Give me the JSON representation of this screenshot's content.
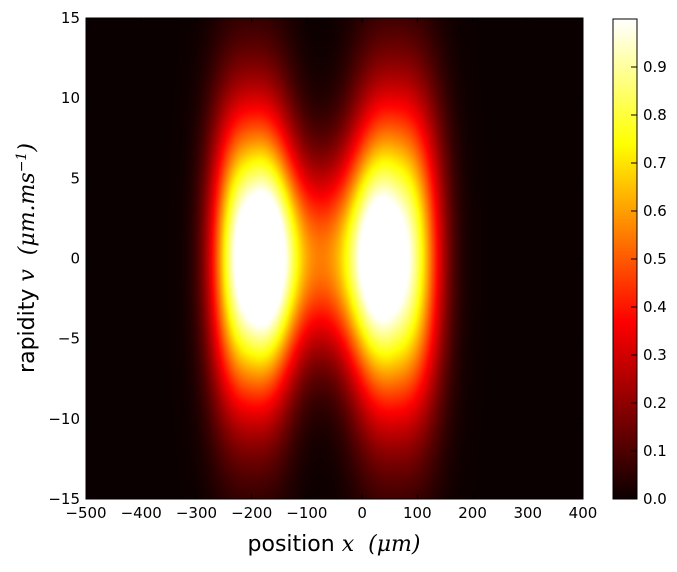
{
  "chart_data": {
    "type": "heatmap",
    "title": "",
    "xlabel": {
      "prefix": "position ",
      "var": "x",
      "unit": "(μm)"
    },
    "ylabel": {
      "prefix": "rapidity ",
      "var": "v",
      "unit": "(μm.ms",
      "exp": "−1",
      "close": ")"
    },
    "xlim": [
      -500,
      400
    ],
    "ylim": [
      -15,
      15
    ],
    "xticks": [
      -500,
      -400,
      -300,
      -200,
      -100,
      0,
      100,
      200,
      300,
      400
    ],
    "xtick_labels": [
      "−500",
      "−400",
      "−300",
      "−200",
      "−100",
      "0",
      "100",
      "200",
      "300",
      "400"
    ],
    "yticks": [
      -15,
      -10,
      -5,
      0,
      5,
      10,
      15
    ],
    "ytick_labels": [
      "−15",
      "−10",
      "−5",
      "0",
      "5",
      "10",
      "15"
    ],
    "colorbar": {
      "range": [
        0.0,
        1.0
      ],
      "ticks": [
        0.0,
        0.1,
        0.2,
        0.3,
        0.4,
        0.5,
        0.6,
        0.7,
        0.8,
        0.9
      ],
      "tick_labels": [
        "0.0",
        "0.1",
        "0.2",
        "0.3",
        "0.4",
        "0.5",
        "0.6",
        "0.7",
        "0.8",
        "0.9"
      ],
      "colormap": "hot"
    },
    "colormap_colors": [
      "#0b0000",
      "#ff0000",
      "#ffff00",
      "#ffffff"
    ],
    "distribution": {
      "description_of_shape": "two bright lobes joined, symmetric in v",
      "lobes": [
        {
          "x_center": -200,
          "v_center": 0,
          "x_width": 55,
          "v_width": 6.5,
          "peak": 1.0
        },
        {
          "x_center": 60,
          "v_center": 0,
          "x_width": 60,
          "v_width": 6.8,
          "peak": 1.0
        }
      ],
      "x_extent": [
        -290,
        170
      ],
      "v_extent": [
        -11,
        11
      ]
    },
    "grid": false
  }
}
